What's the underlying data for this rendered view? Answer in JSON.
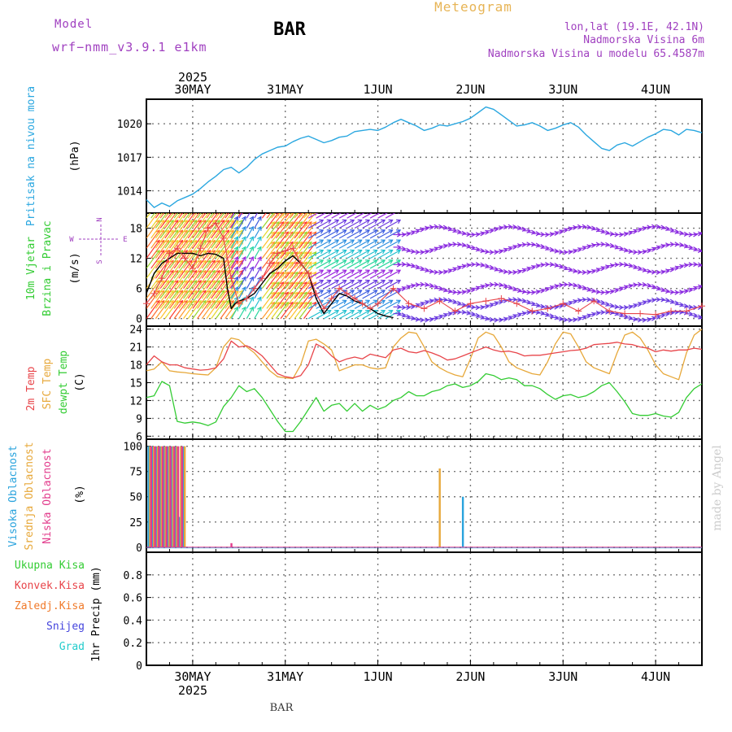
{
  "header": {
    "model_label": "Model",
    "model_name": "wrf−nmm_v3.9.1 e1km",
    "station": "BAR",
    "meteogram": "Meteogram",
    "lonlat": "lon,lat (19.1E, 42.1N)",
    "altitude": "Nadmorska Visina 6m",
    "model_altitude": "Nadmorska Visina u modelu 65.4587m",
    "credit": "made by Angel",
    "footer_station": "BAR"
  },
  "colors": {
    "pressure": "#2aa7e0",
    "temp2m": "#e8454a",
    "sfctemp": "#e7a83a",
    "dewpt": "#33cc33",
    "wind_speed": "#000000",
    "gust": "#e8454a",
    "high_cloud": "#29a3dd",
    "mid_cloud": "#e7a83a",
    "low_cloud": "#e23c8c",
    "label_purple": "#a040c0",
    "grid": "#888888"
  },
  "time_axis": {
    "year": "2025",
    "day_labels": [
      "30MAY",
      "31MAY",
      "1JUN",
      "2JUN",
      "3JUN",
      "4JUN"
    ],
    "day_positions_h": [
      12,
      36,
      60,
      84,
      108,
      132
    ],
    "range_h": [
      0,
      144
    ]
  },
  "chart_data": [
    {
      "type": "line",
      "title": "",
      "ylabel": [
        "Pritisak na nivou mora",
        "(hPa)"
      ],
      "ylim": [
        1012,
        1022.2
      ],
      "yticks": [
        1014,
        1017,
        1020
      ],
      "grid": true,
      "series": [
        {
          "name": "Pritisak na nivou mora",
          "x": [
            0,
            2,
            4,
            6,
            8,
            10,
            12,
            14,
            16,
            18,
            20,
            22,
            24,
            26,
            28,
            30,
            32,
            34,
            36,
            38,
            40,
            42,
            44,
            46,
            48,
            50,
            52,
            54,
            56,
            58,
            60,
            62,
            64,
            66,
            68,
            70,
            72,
            74,
            76,
            78,
            80,
            82,
            84,
            86,
            88,
            90,
            92,
            94,
            96,
            98,
            100,
            102,
            104,
            106,
            108,
            110,
            112,
            114,
            116,
            118,
            120,
            122,
            124,
            126,
            128,
            130,
            132,
            134,
            136,
            138,
            140,
            142,
            144
          ],
          "values": [
            1013.2,
            1012.5,
            1012.9,
            1012.6,
            1013.1,
            1013.4,
            1013.7,
            1014.2,
            1014.8,
            1015.3,
            1015.9,
            1016.1,
            1015.6,
            1016.1,
            1016.8,
            1017.3,
            1017.6,
            1017.9,
            1018.0,
            1018.4,
            1018.7,
            1018.9,
            1018.6,
            1018.3,
            1018.5,
            1018.8,
            1018.9,
            1019.3,
            1019.4,
            1019.5,
            1019.4,
            1019.7,
            1020.1,
            1020.4,
            1020.1,
            1019.8,
            1019.4,
            1019.6,
            1019.9,
            1019.8,
            1020.0,
            1020.2,
            1020.5,
            1021.0,
            1021.5,
            1021.3,
            1020.8,
            1020.3,
            1019.8,
            1019.9,
            1020.1,
            1019.8,
            1019.4,
            1019.6,
            1019.9,
            1020.1,
            1019.7,
            1019.0,
            1018.4,
            1017.8,
            1017.6,
            1018.1,
            1018.3,
            1018.0,
            1018.4,
            1018.8,
            1019.1,
            1019.5,
            1019.4,
            1019.0,
            1019.5,
            1019.4,
            1019.2
          ]
        }
      ]
    },
    {
      "type": "line",
      "title": "",
      "ylabel": [
        "10m Vjetar",
        "Brzina i Pravac",
        "(m/s)"
      ],
      "compass": [
        "N",
        "W",
        "E",
        "S"
      ],
      "ylim": [
        -1.5,
        21
      ],
      "yticks": [
        0,
        6,
        12,
        18
      ],
      "grid": true,
      "series": [
        {
          "name": "speed",
          "x": [
            0,
            2,
            4,
            6,
            8,
            10,
            12,
            14,
            16,
            18,
            20,
            21,
            22,
            23,
            24,
            26,
            28,
            30,
            32,
            34,
            36,
            38,
            40,
            42,
            44,
            46,
            48,
            50,
            52,
            54,
            56,
            58,
            60,
            62,
            64
          ],
          "values": [
            5,
            9,
            11,
            12,
            13,
            13,
            13,
            12.5,
            13,
            12.8,
            12,
            6,
            2,
            3,
            3.5,
            4,
            5,
            7,
            9,
            10,
            11.5,
            12.5,
            11,
            9,
            4,
            1,
            3,
            5,
            4.5,
            3.5,
            3,
            2,
            1,
            0.5,
            0.2
          ]
        },
        {
          "name": "gust",
          "x": [
            0,
            2,
            4,
            6,
            8,
            10,
            12,
            14,
            16,
            18,
            20,
            22,
            24,
            26,
            28,
            30,
            32,
            34,
            36,
            38,
            40,
            42,
            44,
            46,
            48,
            50,
            52,
            54,
            56,
            58,
            60,
            64,
            68,
            72,
            76,
            80,
            84,
            88,
            92,
            96,
            100,
            104,
            108,
            112,
            116,
            120,
            124,
            128,
            132,
            136,
            140,
            144
          ],
          "values": [
            3,
            5,
            8,
            13,
            14,
            12,
            10,
            14,
            18,
            19,
            16,
            8,
            3,
            4,
            6,
            8,
            11,
            13,
            13.5,
            14,
            11,
            9,
            5,
            2,
            4,
            6,
            5,
            4,
            3,
            2,
            3,
            6,
            3,
            2,
            3.5,
            1.5,
            3,
            3.5,
            4,
            3,
            1.5,
            2,
            3,
            1.5,
            3.5,
            1.5,
            1,
            1,
            0.8,
            1.5,
            1.5,
            2.5
          ]
        }
      ]
    },
    {
      "type": "line",
      "title": "",
      "ylabel": [
        "2m Temp",
        "SFC Temp",
        "dewpt Temp",
        "(C)"
      ],
      "ylim": [
        5.5,
        24.5
      ],
      "yticks": [
        6,
        9,
        12,
        15,
        18,
        21,
        24
      ],
      "grid": true,
      "series": [
        {
          "name": "2m Temp",
          "x": [
            0,
            2,
            4,
            6,
            8,
            10,
            12,
            14,
            16,
            18,
            20,
            22,
            24,
            26,
            28,
            30,
            32,
            34,
            36,
            38,
            40,
            42,
            44,
            46,
            48,
            50,
            52,
            54,
            56,
            58,
            60,
            62,
            64,
            66,
            68,
            70,
            72,
            74,
            76,
            78,
            80,
            82,
            84,
            86,
            88,
            90,
            92,
            94,
            96,
            98,
            100,
            102,
            104,
            106,
            108,
            110,
            112,
            114,
            116,
            118,
            120,
            122,
            124,
            126,
            128,
            130,
            132,
            134,
            136,
            138,
            140,
            142,
            144
          ],
          "values": [
            18,
            19.5,
            18.5,
            18,
            18,
            17.5,
            17.3,
            17.1,
            17.2,
            17.5,
            19,
            22,
            21,
            21.2,
            20.5,
            19.5,
            18,
            16.5,
            16,
            15.8,
            16.2,
            18,
            21.5,
            20.8,
            19.5,
            18.5,
            19,
            19.3,
            19,
            19.8,
            19.5,
            19.2,
            20.5,
            20.8,
            20.2,
            20,
            20.4,
            20,
            19.5,
            18.8,
            19,
            19.5,
            20,
            20.5,
            21,
            20.5,
            20.2,
            20.3,
            20,
            19.5,
            19.6,
            19.6,
            19.8,
            20,
            20.2,
            20.4,
            20.5,
            20.8,
            21.4,
            21.5,
            21.6,
            21.8,
            21.5,
            21.4,
            21,
            20.8,
            20.2,
            20.5,
            20.3,
            20.5,
            20.5,
            20.8,
            20.6
          ]
        },
        {
          "name": "SFC Temp",
          "x": [
            0,
            2,
            4,
            6,
            8,
            10,
            12,
            14,
            16,
            18,
            20,
            22,
            24,
            26,
            28,
            30,
            32,
            34,
            36,
            38,
            40,
            42,
            44,
            46,
            48,
            50,
            52,
            54,
            56,
            58,
            60,
            62,
            64,
            66,
            68,
            70,
            72,
            74,
            76,
            78,
            80,
            82,
            84,
            86,
            88,
            90,
            92,
            94,
            96,
            98,
            100,
            102,
            104,
            106,
            108,
            110,
            112,
            114,
            116,
            118,
            120,
            122,
            124,
            126,
            128,
            130,
            132,
            134,
            136,
            138,
            140,
            142,
            144
          ],
          "values": [
            17,
            17.3,
            18.5,
            17,
            16.8,
            16.7,
            16.5,
            16.4,
            16.3,
            17.5,
            21,
            22.5,
            22.2,
            21,
            20,
            18.5,
            17,
            16,
            15.8,
            15.7,
            18,
            22,
            22.3,
            21.5,
            20.5,
            17,
            17.5,
            18,
            18,
            17.5,
            17.3,
            17.5,
            21,
            22.5,
            23.5,
            23.3,
            21,
            18.5,
            17.5,
            16.8,
            16.3,
            16,
            19,
            22.5,
            23.5,
            23,
            21,
            18.5,
            17.5,
            17,
            16.5,
            16.3,
            18.5,
            21.5,
            23.5,
            23.2,
            21,
            18.5,
            17.5,
            17,
            16.5,
            20,
            23,
            23.5,
            22.5,
            20.5,
            18,
            16.5,
            16,
            15.5,
            20,
            23,
            24
          ]
        },
        {
          "name": "dewpt Temp",
          "x": [
            0,
            2,
            4,
            6,
            8,
            10,
            12,
            14,
            16,
            18,
            20,
            22,
            24,
            26,
            28,
            30,
            32,
            34,
            36,
            38,
            40,
            42,
            44,
            46,
            48,
            50,
            52,
            54,
            56,
            58,
            60,
            62,
            64,
            66,
            68,
            70,
            72,
            74,
            76,
            78,
            80,
            82,
            84,
            86,
            88,
            90,
            92,
            94,
            96,
            98,
            100,
            102,
            104,
            106,
            108,
            110,
            112,
            114,
            116,
            118,
            120,
            122,
            124,
            126,
            128,
            130,
            132,
            134,
            136,
            138,
            140,
            142,
            144
          ],
          "values": [
            12.5,
            12.8,
            15.2,
            14.5,
            8.5,
            8.2,
            8.4,
            8.2,
            7.8,
            8.4,
            11,
            12.5,
            14.5,
            13.5,
            14,
            12.5,
            10.5,
            8.5,
            6.8,
            6.8,
            8.5,
            10.5,
            12.5,
            10.2,
            11.2,
            11.5,
            10.2,
            11.5,
            10.2,
            11.2,
            10.5,
            11,
            12,
            12.5,
            13.5,
            12.8,
            12.8,
            13.5,
            13.8,
            14.5,
            14.8,
            14.2,
            14.5,
            15.2,
            16.5,
            16.2,
            15.5,
            15.8,
            15.5,
            14.5,
            14.5,
            14,
            13,
            12.2,
            12.8,
            13,
            12.5,
            12.8,
            13.5,
            14.5,
            15,
            13.5,
            11.8,
            9.8,
            9.5,
            9.5,
            9.8,
            9.4,
            9.2,
            10,
            12.5,
            14,
            14.8
          ]
        }
      ]
    },
    {
      "type": "bar",
      "title": "",
      "ylabel": [
        "Visoka Oblacnost",
        "Srednja Oblacnost",
        "Niska Oblacnost",
        "(%)"
      ],
      "ylim": [
        -5,
        107
      ],
      "yticks": [
        0,
        25,
        50,
        75,
        100
      ],
      "grid": true,
      "series": [
        {
          "name": "Visoka Oblacnost",
          "x": [
            0.5,
            1.5,
            2.5,
            3.5,
            4.5,
            5.5,
            6.5,
            7.5,
            8.5,
            9.5,
            55,
            82
          ],
          "values": [
            100,
            100,
            100,
            100,
            100,
            100,
            100,
            100,
            30,
            100,
            0,
            50
          ]
        },
        {
          "name": "Srednja Oblacnost",
          "x": [
            0.9,
            1.9,
            2.9,
            3.9,
            4.9,
            5.9,
            6.9,
            7.9,
            8.9,
            9.9,
            76
          ],
          "values": [
            100,
            100,
            100,
            100,
            100,
            100,
            100,
            100,
            100,
            100,
            78
          ]
        },
        {
          "name": "Niska Oblacnost",
          "x": [
            1.2,
            2.2,
            3.2,
            4.2,
            5.2,
            6.2,
            7.2,
            8.2,
            9.2,
            22
          ],
          "values": [
            100,
            100,
            100,
            100,
            100,
            100,
            100,
            100,
            100,
            4
          ]
        }
      ]
    },
    {
      "type": "bar",
      "title": "",
      "ylabel": [
        "Ukupna Kisa",
        "Konvek.Kisa",
        "Zaledj.Kisa",
        "Snijeg",
        "Grad",
        "1hr Precip (mm)"
      ],
      "ylim": [
        0,
        1.0
      ],
      "yticks": [
        0,
        0.2,
        0.4,
        0.6,
        0.8
      ],
      "ytick_labels": [
        "0",
        "0.2",
        "0.4",
        "0.6",
        "0.8"
      ],
      "grid": true,
      "series": [
        {
          "name": "Ukupna Kisa",
          "values": [
            0
          ]
        },
        {
          "name": "Konvek.Kisa",
          "values": [
            0
          ]
        },
        {
          "name": "Zaledj.Kisa",
          "values": [
            0
          ]
        },
        {
          "name": "Snijeg",
          "values": [
            0
          ]
        },
        {
          "name": "Grad",
          "values": [
            0
          ]
        }
      ]
    }
  ]
}
